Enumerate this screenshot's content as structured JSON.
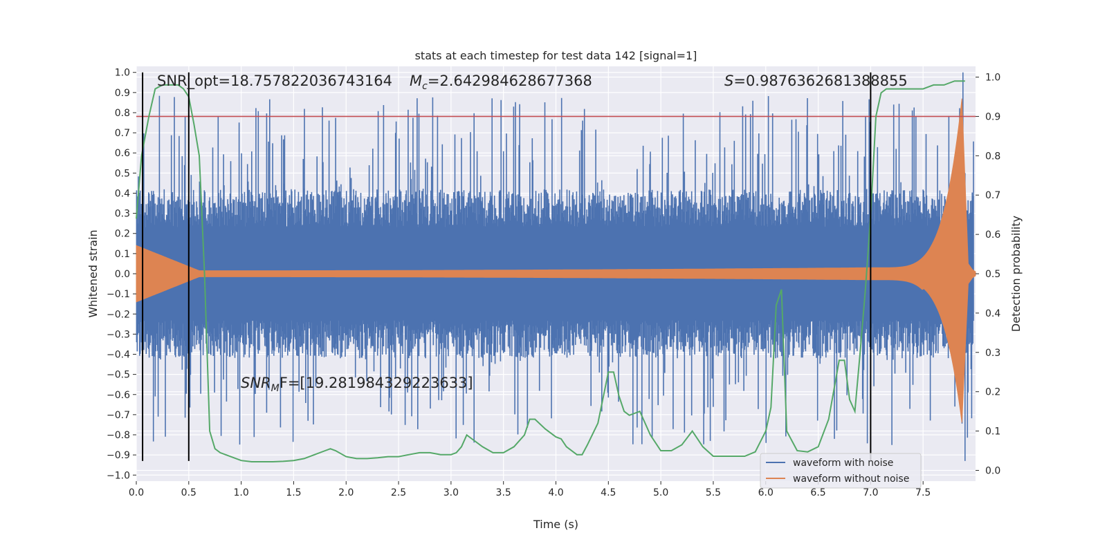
{
  "chart_data": {
    "type": "line",
    "title": "stats at each timestep for test data 142 [signal=1]",
    "xlabel": "Time (s)",
    "ylabel": "Whitened strain",
    "y2label": "Detection probability",
    "xlim": [
      0.0,
      8.0
    ],
    "ylim": [
      -1.03,
      1.03
    ],
    "y2lim": [
      -0.0273,
      1.0273
    ],
    "grid": true,
    "x_ticks": [
      "0.0",
      "0.5",
      "1.0",
      "1.5",
      "2.0",
      "2.5",
      "3.0",
      "3.5",
      "4.0",
      "4.5",
      "5.0",
      "5.5",
      "6.0",
      "6.5",
      "7.0",
      "7.5"
    ],
    "y_ticks": [
      "1.0",
      "0.9",
      "0.8",
      "0.7",
      "0.6",
      "0.5",
      "0.4",
      "0.3",
      "0.2",
      "0.1",
      "0.0",
      "−0.1",
      "−0.2",
      "−0.3",
      "−0.4",
      "−0.5",
      "−0.6",
      "−0.7",
      "−0.8",
      "−0.9",
      "−1.0"
    ],
    "y2_ticks": [
      "1.0",
      "0.9",
      "0.8",
      "0.7",
      "0.6",
      "0.5",
      "0.4",
      "0.3",
      "0.2",
      "0.1",
      "0.0"
    ],
    "annotations": {
      "snr_opt": "SNR_opt=18.757822036743164",
      "mc_sym": "M",
      "mc_sub": "c",
      "mc_val": "=2.642984628677368",
      "s_sym": "S",
      "s_val": "=0.9876362681388855",
      "snrmf_sym": "SNR",
      "snrmf_sub": "M",
      "snrmf_val": "F=[19.281984329223633]"
    },
    "threshold_line": {
      "y2": 0.9,
      "color": "#c44e52"
    },
    "vertical_lines_x": [
      0.06,
      0.5,
      7.0
    ],
    "series": [
      {
        "name": "waveform with noise",
        "color": "#4c72b0",
        "envelope_pos": 0.42,
        "envelope_neg": -0.42,
        "peak_max": 1.0,
        "peak_min": -0.93
      },
      {
        "name": "waveform without noise",
        "color": "#dd8452",
        "amplitude_start": 0.14,
        "amplitude_mid": 0.015,
        "amplitude_peak": 0.87,
        "peak_time": 7.87
      },
      {
        "color": "#55a868",
        "x": [
          0.0,
          0.05,
          0.12,
          0.18,
          0.25,
          0.3,
          0.35,
          0.4,
          0.45,
          0.5,
          0.55,
          0.6,
          0.65,
          0.7,
          0.75,
          0.8,
          0.9,
          1.0,
          1.1,
          1.2,
          1.3,
          1.4,
          1.5,
          1.6,
          1.7,
          1.8,
          1.85,
          1.9,
          2.0,
          2.1,
          2.2,
          2.3,
          2.4,
          2.5,
          2.6,
          2.7,
          2.8,
          2.9,
          3.0,
          3.05,
          3.1,
          3.15,
          3.2,
          3.3,
          3.4,
          3.5,
          3.6,
          3.7,
          3.75,
          3.8,
          3.9,
          4.0,
          4.05,
          4.1,
          4.2,
          4.25,
          4.3,
          4.4,
          4.5,
          4.55,
          4.6,
          4.65,
          4.7,
          4.8,
          4.9,
          5.0,
          5.1,
          5.2,
          5.3,
          5.4,
          5.5,
          5.6,
          5.7,
          5.8,
          5.9,
          6.0,
          6.05,
          6.1,
          6.15,
          6.2,
          6.3,
          6.4,
          6.5,
          6.6,
          6.7,
          6.75,
          6.8,
          6.85,
          6.9,
          6.95,
          7.0,
          7.05,
          7.1,
          7.15,
          7.2,
          7.3,
          7.4,
          7.5,
          7.6,
          7.7,
          7.8,
          7.9
        ],
        "y": [
          0.64,
          0.8,
          0.9,
          0.97,
          0.98,
          0.98,
          0.98,
          0.98,
          0.97,
          0.95,
          0.88,
          0.8,
          0.5,
          0.1,
          0.055,
          0.045,
          0.035,
          0.025,
          0.022,
          0.022,
          0.022,
          0.023,
          0.025,
          0.03,
          0.04,
          0.05,
          0.055,
          0.05,
          0.035,
          0.03,
          0.03,
          0.032,
          0.035,
          0.035,
          0.04,
          0.045,
          0.045,
          0.04,
          0.04,
          0.045,
          0.06,
          0.09,
          0.08,
          0.06,
          0.045,
          0.045,
          0.06,
          0.09,
          0.13,
          0.13,
          0.105,
          0.085,
          0.08,
          0.06,
          0.04,
          0.04,
          0.065,
          0.12,
          0.25,
          0.25,
          0.19,
          0.15,
          0.14,
          0.15,
          0.09,
          0.05,
          0.05,
          0.065,
          0.1,
          0.06,
          0.036,
          0.036,
          0.036,
          0.036,
          0.047,
          0.1,
          0.16,
          0.42,
          0.46,
          0.1,
          0.05,
          0.047,
          0.06,
          0.13,
          0.28,
          0.28,
          0.18,
          0.15,
          0.3,
          0.46,
          0.65,
          0.9,
          0.96,
          0.97,
          0.97,
          0.97,
          0.97,
          0.97,
          0.98,
          0.98,
          0.99,
          0.99
        ]
      }
    ]
  }
}
